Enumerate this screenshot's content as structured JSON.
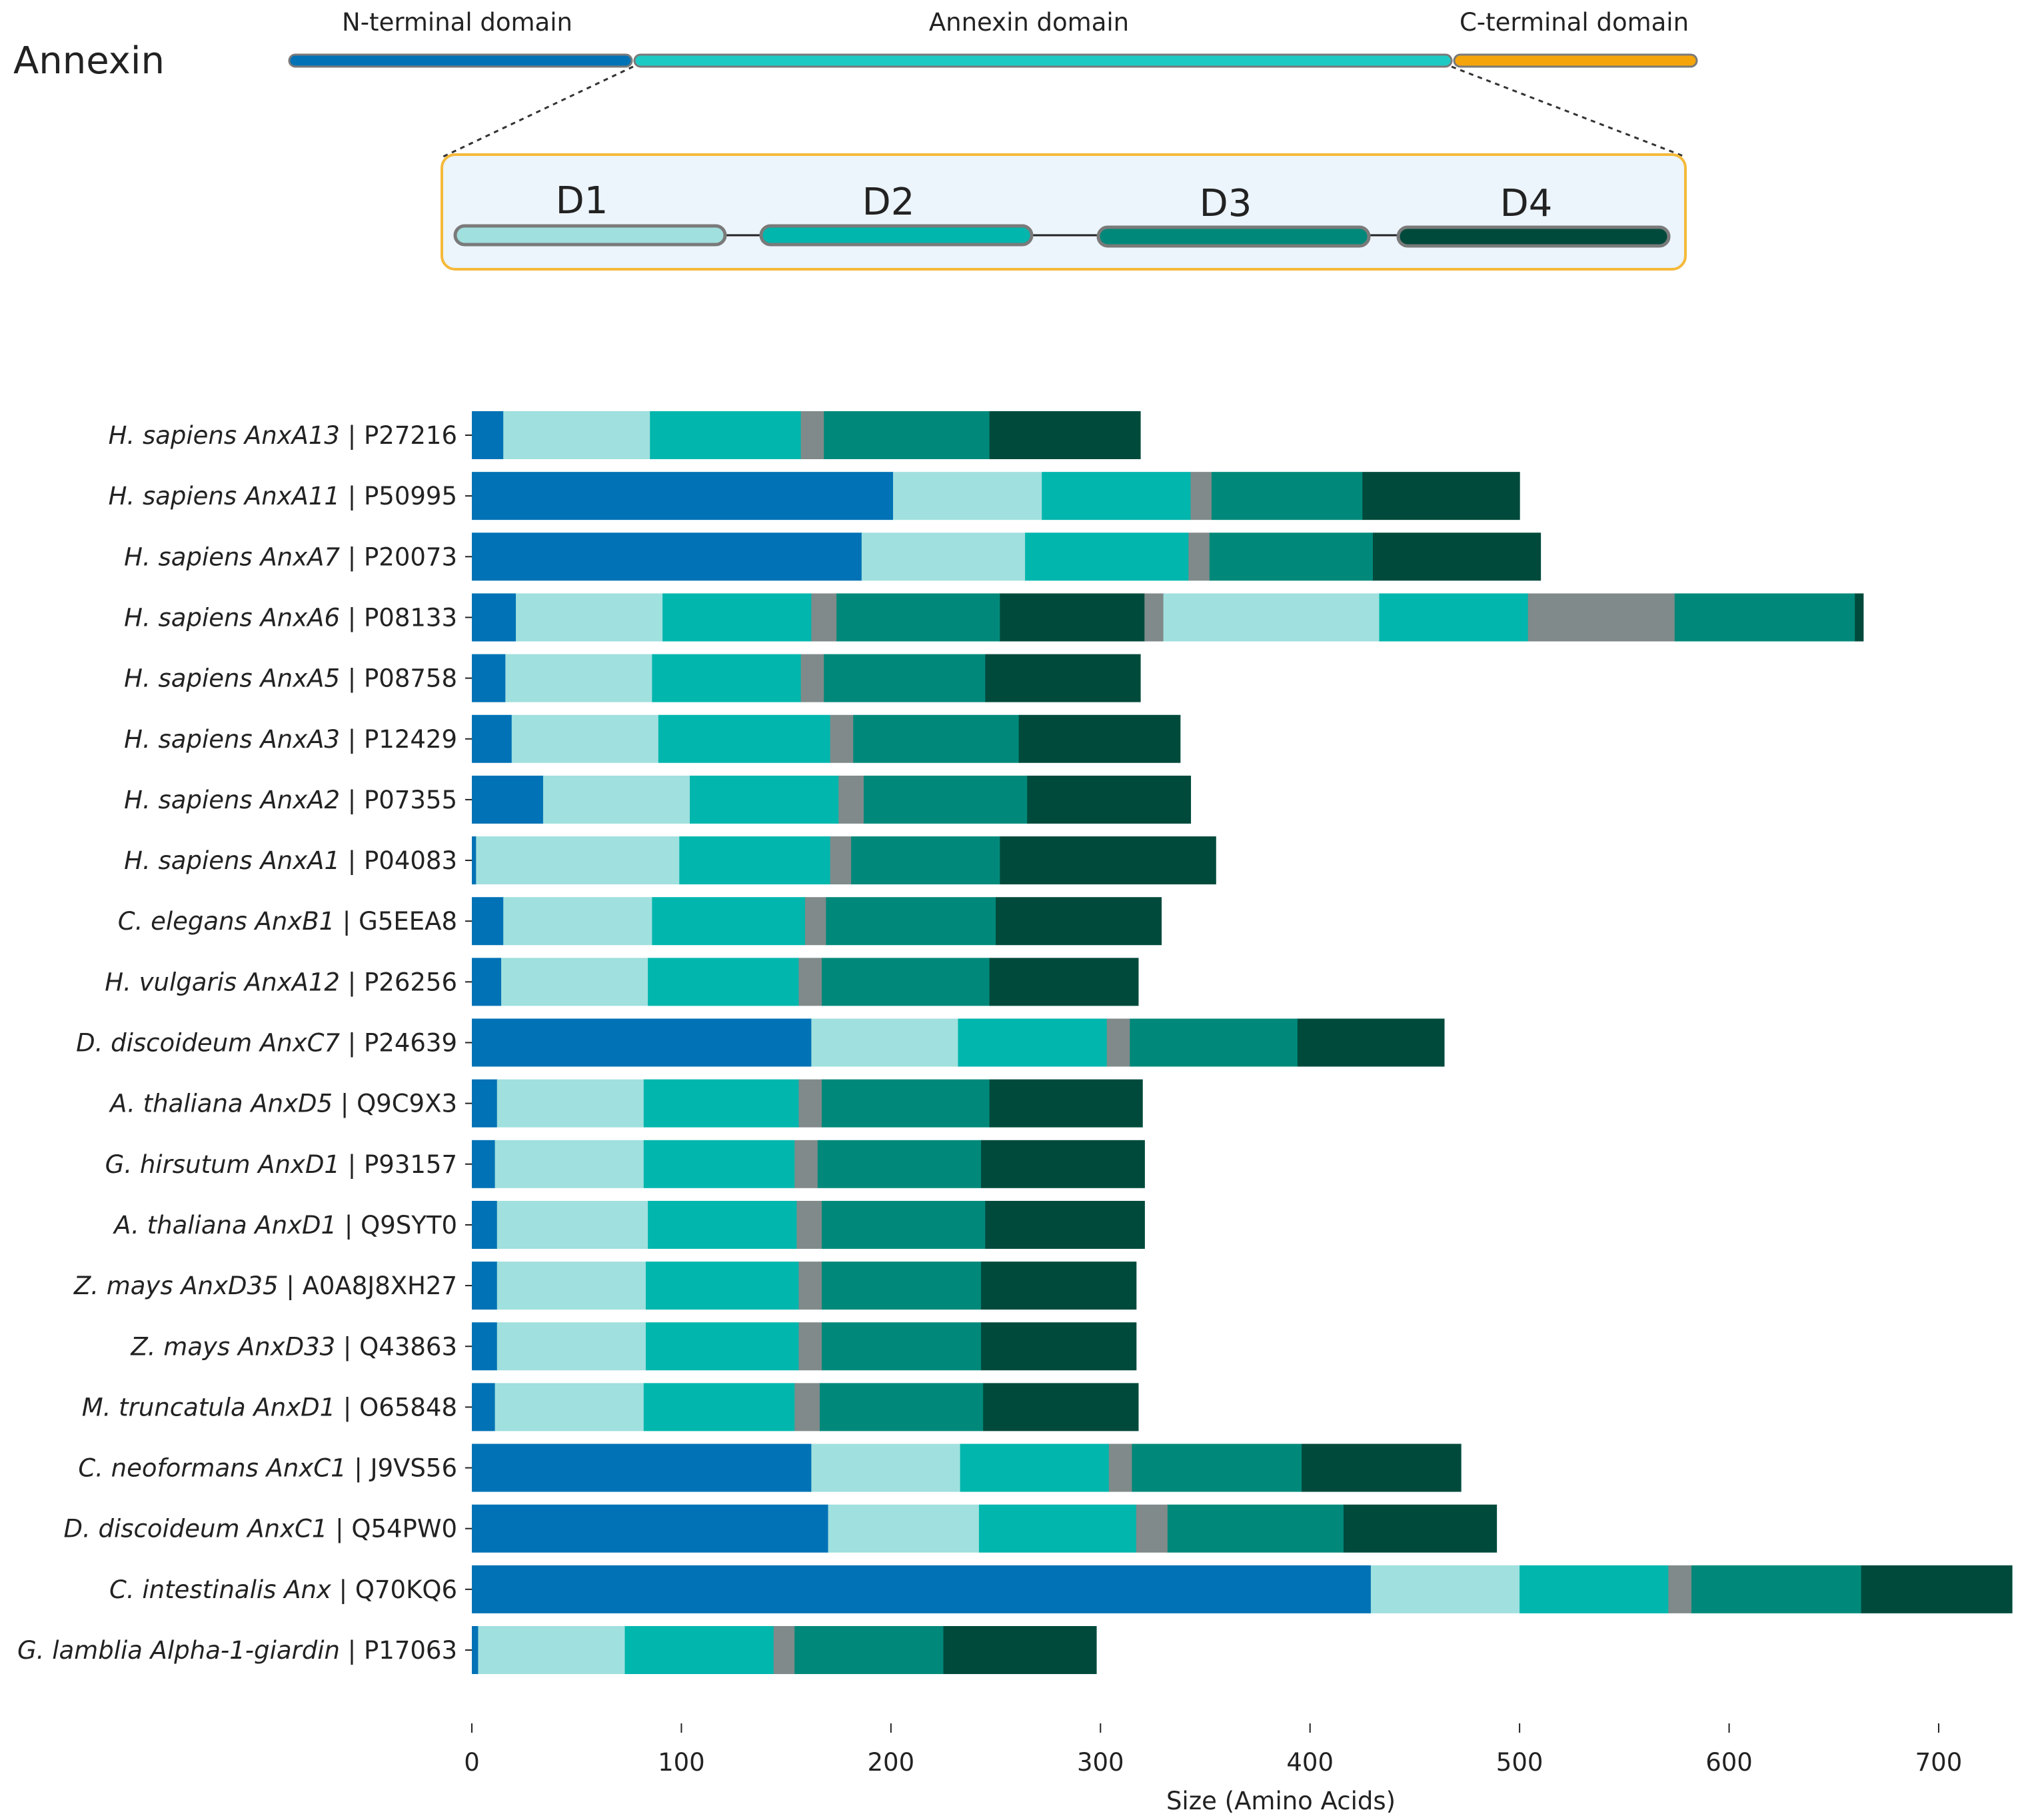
{
  "schematic": {
    "title": "Annexin",
    "domains": [
      {
        "label": "N-terminal domain",
        "color": "#0072b5"
      },
      {
        "label": "Annexin domain",
        "color": "#1ecbc4"
      },
      {
        "label": "C-terminal domain",
        "color": "#f5a40a"
      }
    ],
    "subdomains": [
      {
        "label": "D1",
        "color": "#a0e0de"
      },
      {
        "label": "D2",
        "color": "#00b6ad"
      },
      {
        "label": "D3",
        "color": "#00897a"
      },
      {
        "label": "D4",
        "color": "#004a3c"
      }
    ],
    "inset_border_color": "#f5b93a",
    "inset_fill_color": "#ecf4fc"
  },
  "segment_colors": {
    "N": "#0072b5",
    "D1": "#a0e0de",
    "D2": "#00b6ad",
    "linker": "#808a8a",
    "D3": "#00897a",
    "D4": "#004a3c"
  },
  "chart_data": {
    "type": "bar",
    "orientation": "horizontal",
    "stacked": true,
    "xlabel": "Size (Amino Acids)",
    "xlim": [
      0,
      735
    ],
    "xticks": [
      0,
      100,
      200,
      300,
      400,
      500,
      600,
      700
    ],
    "grid": false,
    "rows": [
      {
        "species": "H.  sapiens AnxA13",
        "id": "P27216",
        "segments": [
          [
            "N",
            0,
            15
          ],
          [
            "D1",
            15,
            85
          ],
          [
            "D2",
            85,
            157
          ],
          [
            "linker",
            157,
            168
          ],
          [
            "D3",
            168,
            247
          ],
          [
            "D4",
            247,
            319
          ]
        ]
      },
      {
        "species": "H.  sapiens AnxA11",
        "id": "P50995",
        "segments": [
          [
            "N",
            0,
            201
          ],
          [
            "D1",
            201,
            272
          ],
          [
            "D2",
            272,
            343
          ],
          [
            "linker",
            343,
            353
          ],
          [
            "D3",
            353,
            425
          ],
          [
            "D4",
            425,
            500
          ]
        ]
      },
      {
        "species": "H.  sapiens AnxA7",
        "id": "P20073",
        "segments": [
          [
            "N",
            0,
            186
          ],
          [
            "D1",
            186,
            264
          ],
          [
            "D2",
            264,
            342
          ],
          [
            "linker",
            342,
            352
          ],
          [
            "D3",
            352,
            430
          ],
          [
            "D4",
            430,
            510
          ]
        ]
      },
      {
        "species": "H.  sapiens AnxA6",
        "id": "P08133",
        "segments": [
          [
            "N",
            0,
            21
          ],
          [
            "D1",
            21,
            91
          ],
          [
            "D2",
            91,
            162
          ],
          [
            "linker",
            162,
            174
          ],
          [
            "D3",
            174,
            252
          ],
          [
            "D4",
            252,
            321
          ],
          [
            "linker",
            321,
            330
          ],
          [
            "D1",
            330,
            433
          ],
          [
            "D2",
            433,
            504
          ],
          [
            "linker",
            504,
            574
          ],
          [
            "D3",
            574,
            660
          ],
          [
            "D4",
            660,
            664
          ]
        ]
      },
      {
        "species": "H.  sapiens AnxA5",
        "id": "P08758",
        "segments": [
          [
            "N",
            0,
            16
          ],
          [
            "D1",
            16,
            86
          ],
          [
            "D2",
            86,
            157
          ],
          [
            "linker",
            157,
            168
          ],
          [
            "D3",
            168,
            245
          ],
          [
            "D4",
            245,
            319
          ]
        ]
      },
      {
        "species": "H.  sapiens AnxA3",
        "id": "P12429",
        "segments": [
          [
            "N",
            0,
            19
          ],
          [
            "D1",
            19,
            89
          ],
          [
            "D2",
            89,
            171
          ],
          [
            "linker",
            171,
            182
          ],
          [
            "D3",
            182,
            261
          ],
          [
            "D4",
            261,
            338
          ]
        ]
      },
      {
        "species": "H.  sapiens AnxA2",
        "id": "P07355",
        "segments": [
          [
            "N",
            0,
            34
          ],
          [
            "D1",
            34,
            104
          ],
          [
            "D2",
            104,
            175
          ],
          [
            "linker",
            175,
            187
          ],
          [
            "D3",
            187,
            265
          ],
          [
            "D4",
            265,
            343
          ]
        ]
      },
      {
        "species": "H.  sapiens AnxA1",
        "id": "P04083",
        "segments": [
          [
            "N",
            0,
            2
          ],
          [
            "D1",
            2,
            99
          ],
          [
            "D2",
            99,
            171
          ],
          [
            "linker",
            171,
            181
          ],
          [
            "D3",
            181,
            252
          ],
          [
            "D4",
            252,
            355
          ]
        ]
      },
      {
        "species": "C. elegans AnxB1",
        "id": "G5EEA8",
        "segments": [
          [
            "N",
            0,
            15
          ],
          [
            "D1",
            15,
            86
          ],
          [
            "D2",
            86,
            159
          ],
          [
            "linker",
            159,
            169
          ],
          [
            "D3",
            169,
            250
          ],
          [
            "D4",
            250,
            329
          ]
        ]
      },
      {
        "species": "H. vulgaris AnxA12",
        "id": "P26256",
        "segments": [
          [
            "N",
            0,
            14
          ],
          [
            "D1",
            14,
            84
          ],
          [
            "D2",
            84,
            156
          ],
          [
            "linker",
            156,
            167
          ],
          [
            "D3",
            167,
            247
          ],
          [
            "D4",
            247,
            318
          ]
        ]
      },
      {
        "species": "D. discoideum AnxC7",
        "id": "P24639",
        "segments": [
          [
            "N",
            0,
            162
          ],
          [
            "D1",
            162,
            232
          ],
          [
            "D2",
            232,
            303
          ],
          [
            "linker",
            303,
            314
          ],
          [
            "D3",
            314,
            394
          ],
          [
            "D4",
            394,
            464
          ]
        ]
      },
      {
        "species": "A. thaliana AnxD5",
        "id": "Q9C9X3",
        "segments": [
          [
            "N",
            0,
            12
          ],
          [
            "D1",
            12,
            82
          ],
          [
            "D2",
            82,
            156
          ],
          [
            "linker",
            156,
            167
          ],
          [
            "D3",
            167,
            247
          ],
          [
            "D4",
            247,
            320
          ]
        ]
      },
      {
        "species": "G. hirsutum AnxD1",
        "id": "P93157",
        "segments": [
          [
            "N",
            0,
            11
          ],
          [
            "D1",
            11,
            82
          ],
          [
            "D2",
            82,
            154
          ],
          [
            "linker",
            154,
            165
          ],
          [
            "D3",
            165,
            243
          ],
          [
            "D4",
            243,
            321
          ]
        ]
      },
      {
        "species": "A. thaliana AnxD1",
        "id": "Q9SYT0",
        "segments": [
          [
            "N",
            0,
            12
          ],
          [
            "D1",
            12,
            84
          ],
          [
            "D2",
            84,
            155
          ],
          [
            "linker",
            155,
            167
          ],
          [
            "D3",
            167,
            245
          ],
          [
            "D4",
            245,
            321
          ]
        ]
      },
      {
        "species": "Z. mays AnxD35",
        "id": "A0A8J8XH27",
        "segments": [
          [
            "N",
            0,
            12
          ],
          [
            "D1",
            12,
            83
          ],
          [
            "D2",
            83,
            156
          ],
          [
            "linker",
            156,
            167
          ],
          [
            "D3",
            167,
            243
          ],
          [
            "D4",
            243,
            317
          ]
        ]
      },
      {
        "species": "Z. mays AnxD33",
        "id": "Q43863",
        "segments": [
          [
            "N",
            0,
            12
          ],
          [
            "D1",
            12,
            83
          ],
          [
            "D2",
            83,
            156
          ],
          [
            "linker",
            156,
            167
          ],
          [
            "D3",
            167,
            243
          ],
          [
            "D4",
            243,
            317
          ]
        ]
      },
      {
        "species": "M. truncatula AnxD1",
        "id": "O65848",
        "segments": [
          [
            "N",
            0,
            11
          ],
          [
            "D1",
            11,
            82
          ],
          [
            "D2",
            82,
            154
          ],
          [
            "linker",
            154,
            166
          ],
          [
            "D3",
            166,
            244
          ],
          [
            "D4",
            244,
            318
          ]
        ]
      },
      {
        "species": "C. neoformans AnxC1",
        "id": "J9VS56",
        "segments": [
          [
            "N",
            0,
            162
          ],
          [
            "D1",
            162,
            233
          ],
          [
            "D2",
            233,
            304
          ],
          [
            "linker",
            304,
            315
          ],
          [
            "D3",
            315,
            396
          ],
          [
            "D4",
            396,
            472
          ]
        ]
      },
      {
        "species": "D. discoideum AnxC1",
        "id": "Q54PW0",
        "segments": [
          [
            "N",
            0,
            170
          ],
          [
            "D1",
            170,
            242
          ],
          [
            "D2",
            242,
            317
          ],
          [
            "linker",
            317,
            332
          ],
          [
            "D3",
            332,
            416
          ],
          [
            "D4",
            416,
            489
          ]
        ]
      },
      {
        "species": "C. intestinalis Anx",
        "id": "Q70KQ6",
        "segments": [
          [
            "N",
            0,
            429
          ],
          [
            "D1",
            429,
            500
          ],
          [
            "D2",
            500,
            571
          ],
          [
            "linker",
            571,
            582
          ],
          [
            "D3",
            582,
            663
          ],
          [
            "D4",
            663,
            735
          ]
        ]
      },
      {
        "species": "G.  lamblia Alpha-1-giardin",
        "id": "P17063",
        "segments": [
          [
            "N",
            0,
            3
          ],
          [
            "D1",
            3,
            73
          ],
          [
            "D2",
            73,
            144
          ],
          [
            "linker",
            144,
            154
          ],
          [
            "D3",
            154,
            225
          ],
          [
            "D4",
            225,
            298
          ]
        ]
      }
    ]
  }
}
